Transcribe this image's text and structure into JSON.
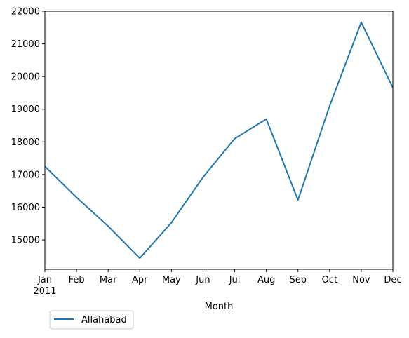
{
  "chart_data": {
    "type": "line",
    "title": "",
    "xlabel": "Month",
    "ylabel": "",
    "categories": [
      "Jan",
      "Feb",
      "Mar",
      "Apr",
      "May",
      "Jun",
      "Jul",
      "Aug",
      "Sep",
      "Oct",
      "Nov",
      "Dec"
    ],
    "year_label": "2011",
    "ylim": [
      14100,
      22000
    ],
    "yticks": [
      15000,
      16000,
      17000,
      18000,
      19000,
      20000,
      21000,
      22000
    ],
    "grid": false,
    "legend_position": "below-left",
    "series": [
      {
        "name": "Allahabad",
        "color": "#1f77b4",
        "values": [
          17250,
          16300,
          15420,
          14440,
          15530,
          16920,
          18100,
          18700,
          16220,
          19100,
          21660,
          19660
        ]
      }
    ]
  }
}
